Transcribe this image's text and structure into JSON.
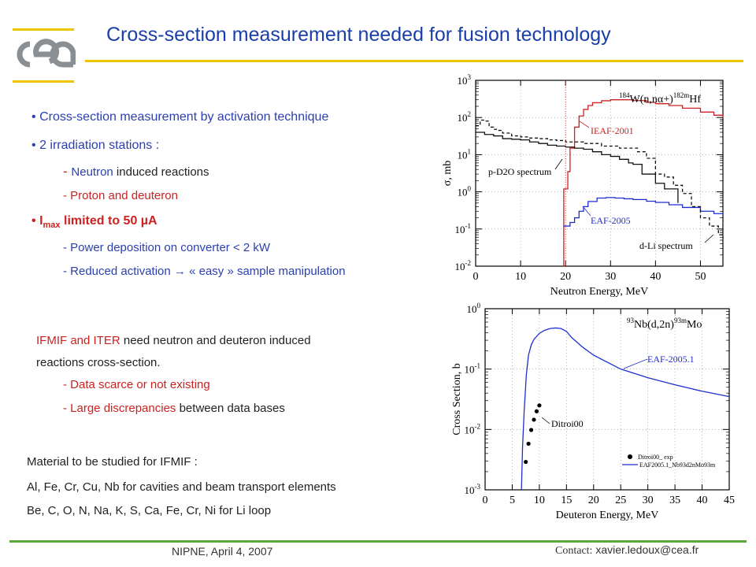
{
  "slide": {
    "title": "Cross-section measurement needed for fusion technology",
    "logo": {
      "text": "cea",
      "bar_color": "#f2c300"
    },
    "accent_line_color": "#f2c300",
    "footer_line_color": "#5ca83a",
    "bullets": [
      {
        "marker": "•",
        "text": "Cross-section measurement by activation technique"
      },
      {
        "marker": "•",
        "text": "2 irradiation stations :"
      }
    ],
    "station_items": [
      {
        "prefix": "- ",
        "highlight": "Neutron",
        "rest": " induced reactions"
      },
      {
        "prefix": "- ",
        "highlight": "Proton and deuteron",
        "rest": ""
      }
    ],
    "imax": {
      "marker": "•",
      "symbol": "I",
      "sub": "max",
      "text": " limited to 50 ",
      "unit": "µA"
    },
    "imax_items": [
      {
        "text": "- Power deposition on converter < 2 kW"
      },
      {
        "text_a": "- Reduced activation ",
        "arrow": "→",
        "text_b": " « easy » sample manipulation"
      }
    ],
    "need": {
      "line1_red": "IFMIF and ITER",
      "line1_rest": " need neutron and deuteron induced",
      "line2": "reactions cross-section.",
      "items": [
        {
          "red": "- Data scarce or not existing",
          "rest": ""
        },
        {
          "red": "- Large discrepancies",
          "rest": " between data bases"
        }
      ]
    },
    "materials": {
      "line1": "Material to be studied for IFMIF :",
      "line2": "Al, Fe, Cr, Cu, Nb for cavities and beam transport elements",
      "line3": "Be, C, O, N, Na, K, S, Ca, Fe, Cr, Ni  for Li loop"
    },
    "footer": {
      "left": "NIPNE, April 4, 2007",
      "contact_label": "Contact:",
      "contact_email": "xavier.ledoux@cea.fr"
    }
  },
  "chart_data": [
    {
      "type": "line",
      "reaction": "184W(n,nα+)182mHf",
      "xlabel": "Neutron Energy,  MeV",
      "ylabel": "σ,  mb",
      "xlim": [
        0,
        55
      ],
      "ylim": [
        0.01,
        1000
      ],
      "yscale": "log",
      "x_ticks": [
        "0",
        "10",
        "20",
        "30",
        "40",
        "50"
      ],
      "y_ticks": [
        {
          "v": 0.01,
          "b": "10",
          "e": "-2"
        },
        {
          "v": 0.1,
          "b": "10",
          "e": "-1"
        },
        {
          "v": 1,
          "b": "10",
          "e": "0"
        },
        {
          "v": 10,
          "b": "10",
          "e": "1"
        },
        {
          "v": 100,
          "b": "10",
          "e": "2"
        },
        {
          "v": 1000,
          "b": "10",
          "e": "3"
        }
      ],
      "series": [
        {
          "name": "IEAF-2001",
          "color": "#cc2222",
          "style": "solid",
          "x": [
            19.5,
            19.6,
            20.5,
            21,
            22,
            23,
            24,
            25,
            26,
            28,
            30,
            32,
            35,
            38,
            40,
            43,
            46,
            50,
            53,
            55
          ],
          "y": [
            0.01,
            1.2,
            3.5,
            15,
            55,
            110,
            165,
            210,
            250,
            282,
            300,
            300,
            285,
            255,
            235,
            210,
            178,
            140,
            115,
            100
          ]
        },
        {
          "name": "EAF-2005",
          "color": "#1e2fd0",
          "style": "solid",
          "x": [
            19.5,
            21,
            22,
            23,
            24,
            25,
            27,
            29,
            31,
            33,
            35,
            38,
            40,
            43,
            46,
            50,
            53,
            55
          ],
          "y": [
            0.12,
            0.15,
            0.2,
            0.3,
            0.4,
            0.55,
            0.68,
            0.7,
            0.68,
            0.65,
            0.62,
            0.56,
            0.52,
            0.45,
            0.38,
            0.3,
            0.26,
            0.24
          ]
        },
        {
          "name": "p-D2O spectrum",
          "color": "#111111",
          "style": "solid",
          "x": [
            0,
            2,
            4,
            6,
            8,
            10,
            12,
            14,
            16,
            18,
            20,
            22,
            24,
            26,
            28,
            30,
            32,
            34,
            35,
            37,
            40,
            42,
            45
          ],
          "y": [
            40,
            35,
            32,
            27,
            26,
            25,
            22,
            20,
            18,
            17,
            16,
            15,
            14,
            12,
            10,
            9,
            7.5,
            6,
            5.5,
            3,
            1.7,
            1.2,
            0.5
          ]
        },
        {
          "name": "d-Li spectrum",
          "color": "#111111",
          "style": "dashed",
          "x": [
            0,
            1,
            2,
            3,
            4,
            5,
            6,
            8,
            10,
            12,
            14,
            16,
            18,
            20,
            24,
            28,
            32,
            36,
            38,
            40,
            42,
            44,
            46,
            48,
            50,
            52,
            54,
            55
          ],
          "y": [
            60,
            85,
            80,
            55,
            48,
            45,
            38,
            32,
            30,
            28,
            27,
            25,
            24,
            22,
            20,
            17,
            15,
            12,
            8,
            3,
            2.5,
            1.5,
            0.9,
            0.4,
            0.2,
            0.12,
            0.07,
            0.06
          ]
        }
      ],
      "annotations": [
        "IEAF-2001",
        "EAF-2005",
        "p-D2O spectrum",
        "d-Li spectrum"
      ],
      "threshold_marker_x": 20
    },
    {
      "type": "line",
      "reaction": "93Nb(d,2n)93mMo",
      "xlabel": "Deuteron Energy,  MeV",
      "ylabel": "Cross Section,  b",
      "xlim": [
        0,
        45
      ],
      "ylim": [
        0.001,
        1
      ],
      "yscale": "log",
      "x_ticks": [
        "0",
        "5",
        "10",
        "15",
        "20",
        "25",
        "30",
        "35",
        "40",
        "45"
      ],
      "y_ticks": [
        {
          "v": 0.001,
          "b": "10",
          "e": "-3"
        },
        {
          "v": 0.01,
          "b": "10",
          "e": "-2"
        },
        {
          "v": 0.1,
          "b": "10",
          "e": "-1"
        },
        {
          "v": 1,
          "b": "10",
          "e": "0"
        }
      ],
      "series": [
        {
          "name": "EAF-2005.1",
          "color": "#1e2fd0",
          "style": "solid",
          "x": [
            6.7,
            6.9,
            7.2,
            7.6,
            8,
            8.5,
            9,
            10,
            11,
            12,
            13,
            14,
            15,
            16,
            18,
            20,
            25,
            30,
            35,
            40,
            45
          ],
          "y": [
            0.001,
            0.005,
            0.02,
            0.08,
            0.17,
            0.25,
            0.31,
            0.39,
            0.44,
            0.47,
            0.48,
            0.47,
            0.42,
            0.33,
            0.23,
            0.17,
            0.1,
            0.072,
            0.055,
            0.043,
            0.035
          ]
        },
        {
          "name": "Ditroi00",
          "color": "#000000",
          "style": "markers",
          "x": [
            7.5,
            8.0,
            8.5,
            9.0,
            9.5,
            10.0
          ],
          "y": [
            0.0029,
            0.0058,
            0.0098,
            0.0145,
            0.02,
            0.025
          ]
        }
      ],
      "annotations": [
        "EAF-2005.1",
        "Ditroi00"
      ],
      "legend": {
        "position": "bottom-right",
        "entries": [
          {
            "marker": "dot",
            "label": "Ditroi00_ exp"
          },
          {
            "marker": "line",
            "label": "EAF2005.1_Nb93d2nMo93m"
          }
        ]
      }
    }
  ]
}
